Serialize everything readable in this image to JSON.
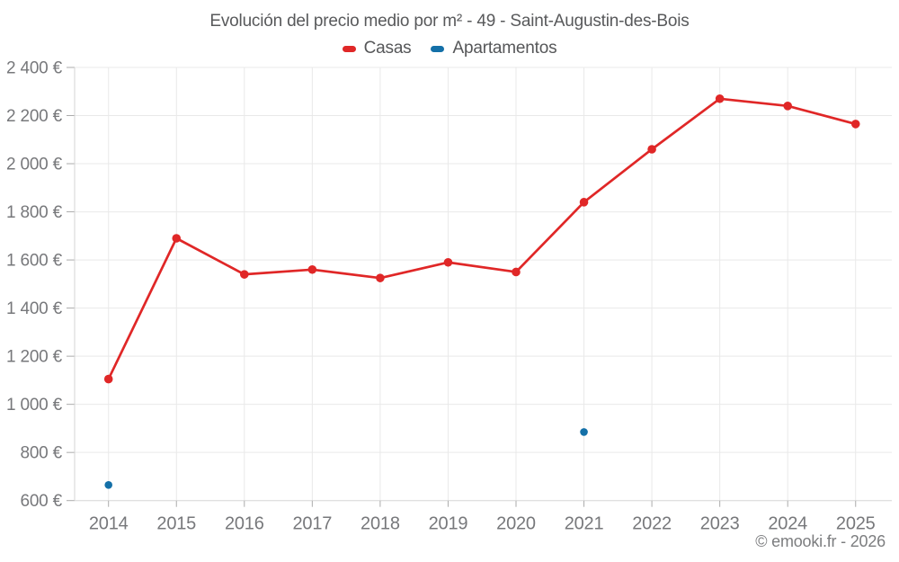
{
  "header": {
    "title": "Evolución del precio medio por m² - 49 - Saint-Augustin-des-Bois"
  },
  "legend": [
    {
      "label": "Casas",
      "color": "#e02727"
    },
    {
      "label": "Apartamentos",
      "color": "#1470a8"
    }
  ],
  "footer": {
    "credit": "© emooki.fr - 2026"
  },
  "colors": {
    "casas": "#e02727",
    "apartamentos": "#1470a8",
    "grid": "#e9e9e9",
    "axis": "#d5d5d5",
    "tick": "#ababab",
    "axis_label": "#77787b"
  },
  "chart_data": {
    "type": "line",
    "title": "Evolución del precio medio por m² - 49 - Saint-Augustin-des-Bois",
    "categories": [
      "2014",
      "2015",
      "2016",
      "2017",
      "2018",
      "2019",
      "2020",
      "2021",
      "2022",
      "2023",
      "2024",
      "2025"
    ],
    "series": [
      {
        "name": "Casas",
        "color": "#e02727",
        "values": [
          1105,
          1690,
          1540,
          1560,
          1525,
          1590,
          1550,
          1840,
          2060,
          2270,
          2240,
          2165
        ]
      },
      {
        "name": "Apartamentos",
        "color": "#1470a8",
        "values": [
          665,
          null,
          null,
          null,
          null,
          null,
          null,
          885,
          null,
          null,
          null,
          null
        ]
      }
    ],
    "xlabel": "",
    "ylabel": "",
    "ylim": [
      600,
      2400
    ],
    "ytick_step": 200,
    "ytick_suffix": " €",
    "ytick_labels": [
      "600 €",
      "800 €",
      "1 000 €",
      "1 200 €",
      "1 400 €",
      "1 600 €",
      "1 800 €",
      "2 000 €",
      "2 200 €",
      "2 400 €"
    ],
    "grid": true,
    "legend_position": "top"
  }
}
